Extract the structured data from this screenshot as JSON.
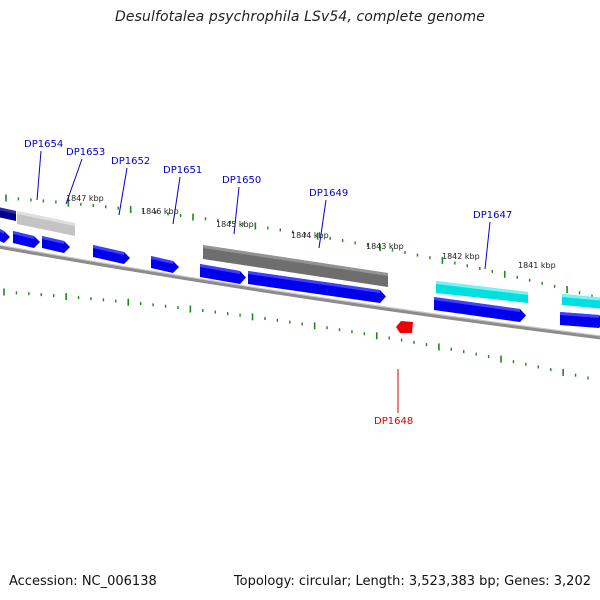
{
  "title": "Desulfotalea psychrophila LSv54, complete genome",
  "accession": "Accession: NC_006138",
  "summary": "Topology: circular; Length: 3,523,383 bp; Genes: 3,202",
  "colors": {
    "forward_gene": "#0000ee",
    "reverse_gene": "#ee0000",
    "gray_feature": "#6e6e6e",
    "light_gray_feature": "#c4c4c4",
    "cyan_feature": "#00e0e0",
    "navy_feature": "#000088",
    "tick": "#1a8a1a",
    "backbone": "#7a7a7a",
    "label_forward": "#0000cc",
    "label_reverse": "#dd0000"
  },
  "kbp_marks": [
    {
      "label": "1847 kbp"
    },
    {
      "label": "1846 kbp"
    },
    {
      "label": "1845 kbp"
    },
    {
      "label": "1844 kbp"
    },
    {
      "label": "1843 kbp"
    },
    {
      "label": "1842 kbp"
    },
    {
      "label": "1841 kbp"
    }
  ],
  "gene_labels": [
    {
      "name": "DP1654",
      "strand": "forward"
    },
    {
      "name": "DP1653",
      "strand": "forward"
    },
    {
      "name": "DP1652",
      "strand": "forward"
    },
    {
      "name": "DP1651",
      "strand": "forward"
    },
    {
      "name": "DP1650",
      "strand": "forward"
    },
    {
      "name": "DP1649",
      "strand": "forward"
    },
    {
      "name": "DP1647",
      "strand": "forward"
    },
    {
      "name": "DP1648",
      "strand": "reverse"
    }
  ]
}
